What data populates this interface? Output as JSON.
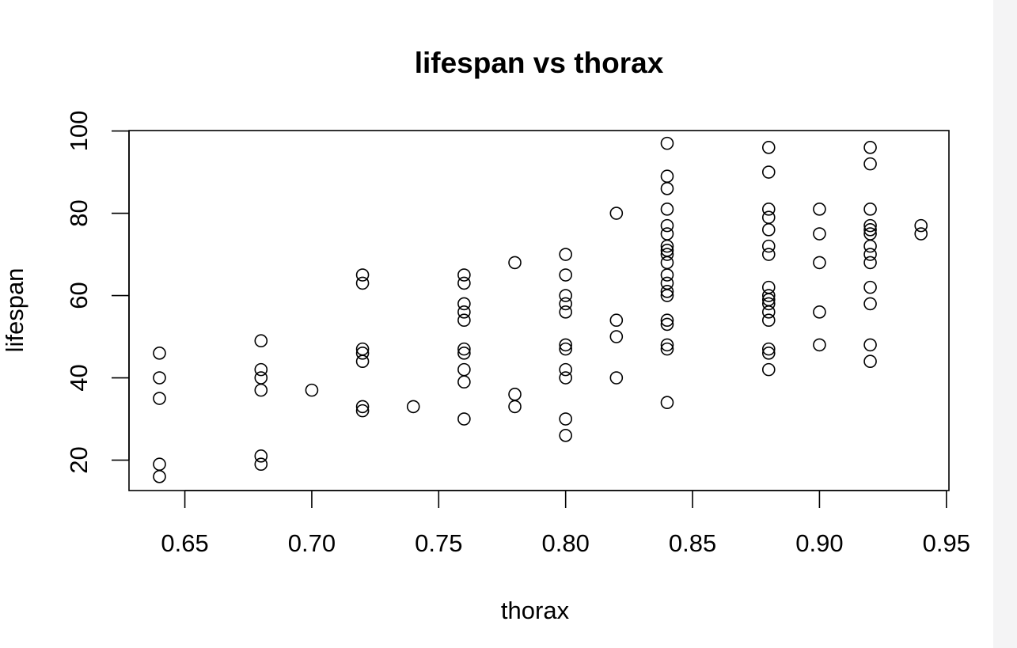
{
  "chart_data": {
    "type": "scatter",
    "title": "lifespan vs thorax",
    "xlabel": "thorax",
    "ylabel": "lifespan",
    "xlim": [
      0.628,
      0.951
    ],
    "ylim": [
      12.6,
      100.1
    ],
    "xticks": [
      0.65,
      0.7,
      0.75,
      0.8,
      0.85,
      0.9,
      0.95
    ],
    "xtick_labels": [
      "0.65",
      "0.70",
      "0.75",
      "0.80",
      "0.85",
      "0.90",
      "0.95"
    ],
    "yticks": [
      20,
      40,
      60,
      80,
      100
    ],
    "ytick_labels": [
      "20",
      "40",
      "60",
      "80",
      "100"
    ],
    "grid": false,
    "legend": "none",
    "marker": "open-circle",
    "color": "#000000",
    "points": [
      {
        "x": 0.64,
        "y": 46
      },
      {
        "x": 0.64,
        "y": 40
      },
      {
        "x": 0.64,
        "y": 35
      },
      {
        "x": 0.64,
        "y": 19
      },
      {
        "x": 0.64,
        "y": 16
      },
      {
        "x": 0.68,
        "y": 49
      },
      {
        "x": 0.68,
        "y": 42
      },
      {
        "x": 0.68,
        "y": 40
      },
      {
        "x": 0.68,
        "y": 37
      },
      {
        "x": 0.68,
        "y": 21
      },
      {
        "x": 0.68,
        "y": 19
      },
      {
        "x": 0.7,
        "y": 37
      },
      {
        "x": 0.72,
        "y": 65
      },
      {
        "x": 0.72,
        "y": 63
      },
      {
        "x": 0.72,
        "y": 47
      },
      {
        "x": 0.72,
        "y": 46
      },
      {
        "x": 0.72,
        "y": 44
      },
      {
        "x": 0.72,
        "y": 33
      },
      {
        "x": 0.72,
        "y": 32
      },
      {
        "x": 0.74,
        "y": 33
      },
      {
        "x": 0.76,
        "y": 65
      },
      {
        "x": 0.76,
        "y": 63
      },
      {
        "x": 0.76,
        "y": 58
      },
      {
        "x": 0.76,
        "y": 56
      },
      {
        "x": 0.76,
        "y": 54
      },
      {
        "x": 0.76,
        "y": 47
      },
      {
        "x": 0.76,
        "y": 46
      },
      {
        "x": 0.76,
        "y": 42
      },
      {
        "x": 0.76,
        "y": 39
      },
      {
        "x": 0.76,
        "y": 30
      },
      {
        "x": 0.78,
        "y": 68
      },
      {
        "x": 0.78,
        "y": 36
      },
      {
        "x": 0.78,
        "y": 33
      },
      {
        "x": 0.8,
        "y": 70
      },
      {
        "x": 0.8,
        "y": 65
      },
      {
        "x": 0.8,
        "y": 60
      },
      {
        "x": 0.8,
        "y": 58
      },
      {
        "x": 0.8,
        "y": 56
      },
      {
        "x": 0.8,
        "y": 48
      },
      {
        "x": 0.8,
        "y": 47
      },
      {
        "x": 0.8,
        "y": 42
      },
      {
        "x": 0.8,
        "y": 40
      },
      {
        "x": 0.8,
        "y": 30
      },
      {
        "x": 0.8,
        "y": 26
      },
      {
        "x": 0.82,
        "y": 80
      },
      {
        "x": 0.82,
        "y": 54
      },
      {
        "x": 0.82,
        "y": 50
      },
      {
        "x": 0.82,
        "y": 40
      },
      {
        "x": 0.84,
        "y": 97
      },
      {
        "x": 0.84,
        "y": 89
      },
      {
        "x": 0.84,
        "y": 86
      },
      {
        "x": 0.84,
        "y": 81
      },
      {
        "x": 0.84,
        "y": 77
      },
      {
        "x": 0.84,
        "y": 75
      },
      {
        "x": 0.84,
        "y": 72
      },
      {
        "x": 0.84,
        "y": 71
      },
      {
        "x": 0.84,
        "y": 70
      },
      {
        "x": 0.84,
        "y": 68
      },
      {
        "x": 0.84,
        "y": 65
      },
      {
        "x": 0.84,
        "y": 63
      },
      {
        "x": 0.84,
        "y": 61
      },
      {
        "x": 0.84,
        "y": 60
      },
      {
        "x": 0.84,
        "y": 54
      },
      {
        "x": 0.84,
        "y": 53
      },
      {
        "x": 0.84,
        "y": 48
      },
      {
        "x": 0.84,
        "y": 47
      },
      {
        "x": 0.84,
        "y": 34
      },
      {
        "x": 0.88,
        "y": 96
      },
      {
        "x": 0.88,
        "y": 90
      },
      {
        "x": 0.88,
        "y": 81
      },
      {
        "x": 0.88,
        "y": 79
      },
      {
        "x": 0.88,
        "y": 76
      },
      {
        "x": 0.88,
        "y": 72
      },
      {
        "x": 0.88,
        "y": 70
      },
      {
        "x": 0.88,
        "y": 62
      },
      {
        "x": 0.88,
        "y": 60
      },
      {
        "x": 0.88,
        "y": 59
      },
      {
        "x": 0.88,
        "y": 58
      },
      {
        "x": 0.88,
        "y": 56
      },
      {
        "x": 0.88,
        "y": 54
      },
      {
        "x": 0.88,
        "y": 47
      },
      {
        "x": 0.88,
        "y": 46
      },
      {
        "x": 0.88,
        "y": 42
      },
      {
        "x": 0.9,
        "y": 81
      },
      {
        "x": 0.9,
        "y": 75
      },
      {
        "x": 0.9,
        "y": 68
      },
      {
        "x": 0.9,
        "y": 56
      },
      {
        "x": 0.9,
        "y": 48
      },
      {
        "x": 0.92,
        "y": 96
      },
      {
        "x": 0.92,
        "y": 92
      },
      {
        "x": 0.92,
        "y": 81
      },
      {
        "x": 0.92,
        "y": 77
      },
      {
        "x": 0.92,
        "y": 76
      },
      {
        "x": 0.92,
        "y": 75
      },
      {
        "x": 0.92,
        "y": 72
      },
      {
        "x": 0.92,
        "y": 70
      },
      {
        "x": 0.92,
        "y": 68
      },
      {
        "x": 0.92,
        "y": 62
      },
      {
        "x": 0.92,
        "y": 58
      },
      {
        "x": 0.92,
        "y": 48
      },
      {
        "x": 0.92,
        "y": 44
      },
      {
        "x": 0.94,
        "y": 77
      },
      {
        "x": 0.94,
        "y": 75
      }
    ]
  }
}
